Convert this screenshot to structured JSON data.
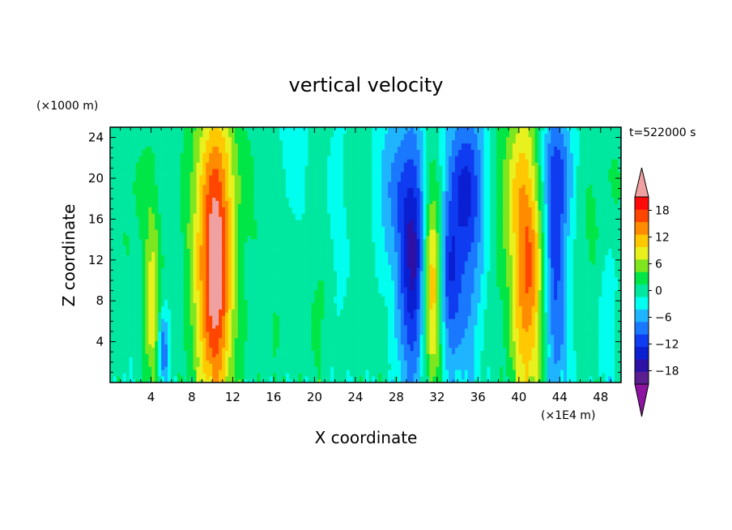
{
  "chart_data": {
    "type": "heatmap",
    "title": "vertical velocity",
    "xlabel": "X coordinate",
    "ylabel": "Z coordinate",
    "x_unit": "(×1E4 m)",
    "y_unit": "(×1000 m)",
    "time_label": "t=522000 s",
    "xlim": [
      0,
      50
    ],
    "ylim": [
      0,
      25
    ],
    "x_ticks": [
      4,
      8,
      12,
      16,
      20,
      24,
      28,
      32,
      36,
      40,
      44,
      48
    ],
    "x_tick_labels": [
      "4",
      "8",
      "12",
      "16",
      "20",
      "24",
      "28",
      "32",
      "36",
      "40",
      "44",
      "48"
    ],
    "y_ticks": [
      4,
      8,
      12,
      16,
      20,
      24
    ],
    "y_tick_labels": [
      "4",
      "8",
      "12",
      "16",
      "20",
      "24"
    ],
    "colorbar": {
      "levels": [
        -21,
        -18,
        -15,
        -12,
        -9,
        -6,
        -3,
        0,
        3,
        6,
        9,
        12,
        15,
        18,
        21
      ],
      "tick_values": [
        18,
        12,
        6,
        0,
        -6,
        -12,
        -18
      ],
      "tick_labels": [
        "18",
        "12",
        "6",
        "0",
        "−6",
        "−12",
        "−18"
      ],
      "colors": [
        "#5a1e91",
        "#2d10a6",
        "#0a1ed2",
        "#0f3cf0",
        "#1a78ff",
        "#1fb4ff",
        "#00ffee",
        "#00e8a0",
        "#00e646",
        "#7ee61e",
        "#e8f01e",
        "#ffc800",
        "#ff8c00",
        "#ff4600",
        "#ff0a0a"
      ],
      "over_color": "#f0a0a0",
      "under_color": "#8c14a0"
    },
    "background_value": 0.5,
    "features": [
      {
        "x": 10.2,
        "z": 10,
        "sx": 1.4,
        "sz": 10,
        "amp": 22
      },
      {
        "x": 10.5,
        "z": 22,
        "sx": 2,
        "sz": 6,
        "amp": 5
      },
      {
        "x": 41,
        "z": 11,
        "sx": 1.4,
        "sz": 11,
        "amp": 17
      },
      {
        "x": 31.5,
        "z": 8,
        "sx": 0.8,
        "sz": 7,
        "amp": 19
      },
      {
        "x": 31.5,
        "z": 18,
        "sx": 0.8,
        "sz": 6,
        "amp": 7
      },
      {
        "x": 30,
        "z": 10,
        "sx": 1.1,
        "sz": 9,
        "amp": -14
      },
      {
        "x": 33,
        "z": 9,
        "sx": 0.8,
        "sz": 6,
        "amp": -9
      },
      {
        "x": 29,
        "z": 17,
        "sx": 2,
        "sz": 7,
        "amp": -6
      },
      {
        "x": 34.5,
        "z": 13,
        "sx": 1.2,
        "sz": 9,
        "amp": -8
      },
      {
        "x": 35,
        "z": 20,
        "sx": 1.6,
        "sz": 5,
        "amp": -7
      },
      {
        "x": 43.5,
        "z": 11,
        "sx": 0.9,
        "sz": 10,
        "amp": -14
      },
      {
        "x": 43.5,
        "z": 21,
        "sx": 1.5,
        "sz": 4,
        "amp": -6
      },
      {
        "x": 4.1,
        "z": 7,
        "sx": 0.5,
        "sz": 6,
        "amp": 9
      },
      {
        "x": 5.2,
        "z": 3,
        "sx": 0.3,
        "sz": 2.5,
        "amp": -10
      },
      {
        "x": 3.5,
        "z": 15,
        "sx": 1.5,
        "sz": 8,
        "amp": 2.5
      },
      {
        "x": 14.5,
        "z": 12,
        "sx": 1.0,
        "sz": 10,
        "amp": 1
      },
      {
        "x": 16,
        "z": 8,
        "sx": 0.6,
        "sz": 8,
        "amp": 2.6
      },
      {
        "x": 20,
        "z": 8,
        "sx": 1.5,
        "sz": 10,
        "amp": 2.5
      },
      {
        "x": 22,
        "z": 16,
        "sx": 0.8,
        "sz": 6,
        "amp": -2
      },
      {
        "x": 25.5,
        "z": 14,
        "sx": 1.0,
        "sz": 10,
        "amp": 2.6
      },
      {
        "x": 27,
        "z": 20,
        "sx": 1.0,
        "sz": 5,
        "amp": -3
      },
      {
        "x": 38,
        "z": 20,
        "sx": 0.8,
        "sz": 5,
        "amp": 2
      },
      {
        "x": 39.5,
        "z": 20,
        "sx": 1.2,
        "sz": 6,
        "amp": 4
      },
      {
        "x": 46.5,
        "z": 15,
        "sx": 1.5,
        "sz": 10,
        "amp": 2.4
      },
      {
        "x": 48.5,
        "z": 8,
        "sx": 0.6,
        "sz": 6,
        "amp": -3
      },
      {
        "x": 49,
        "z": 20,
        "sx": 1.0,
        "sz": 6,
        "amp": 2.5
      },
      {
        "x": 2,
        "z": 20,
        "sx": 1.2,
        "sz": 6,
        "amp": 1.5
      },
      {
        "x": 18,
        "z": 21,
        "sx": 1.2,
        "sz": 5,
        "amp": -2
      }
    ]
  }
}
